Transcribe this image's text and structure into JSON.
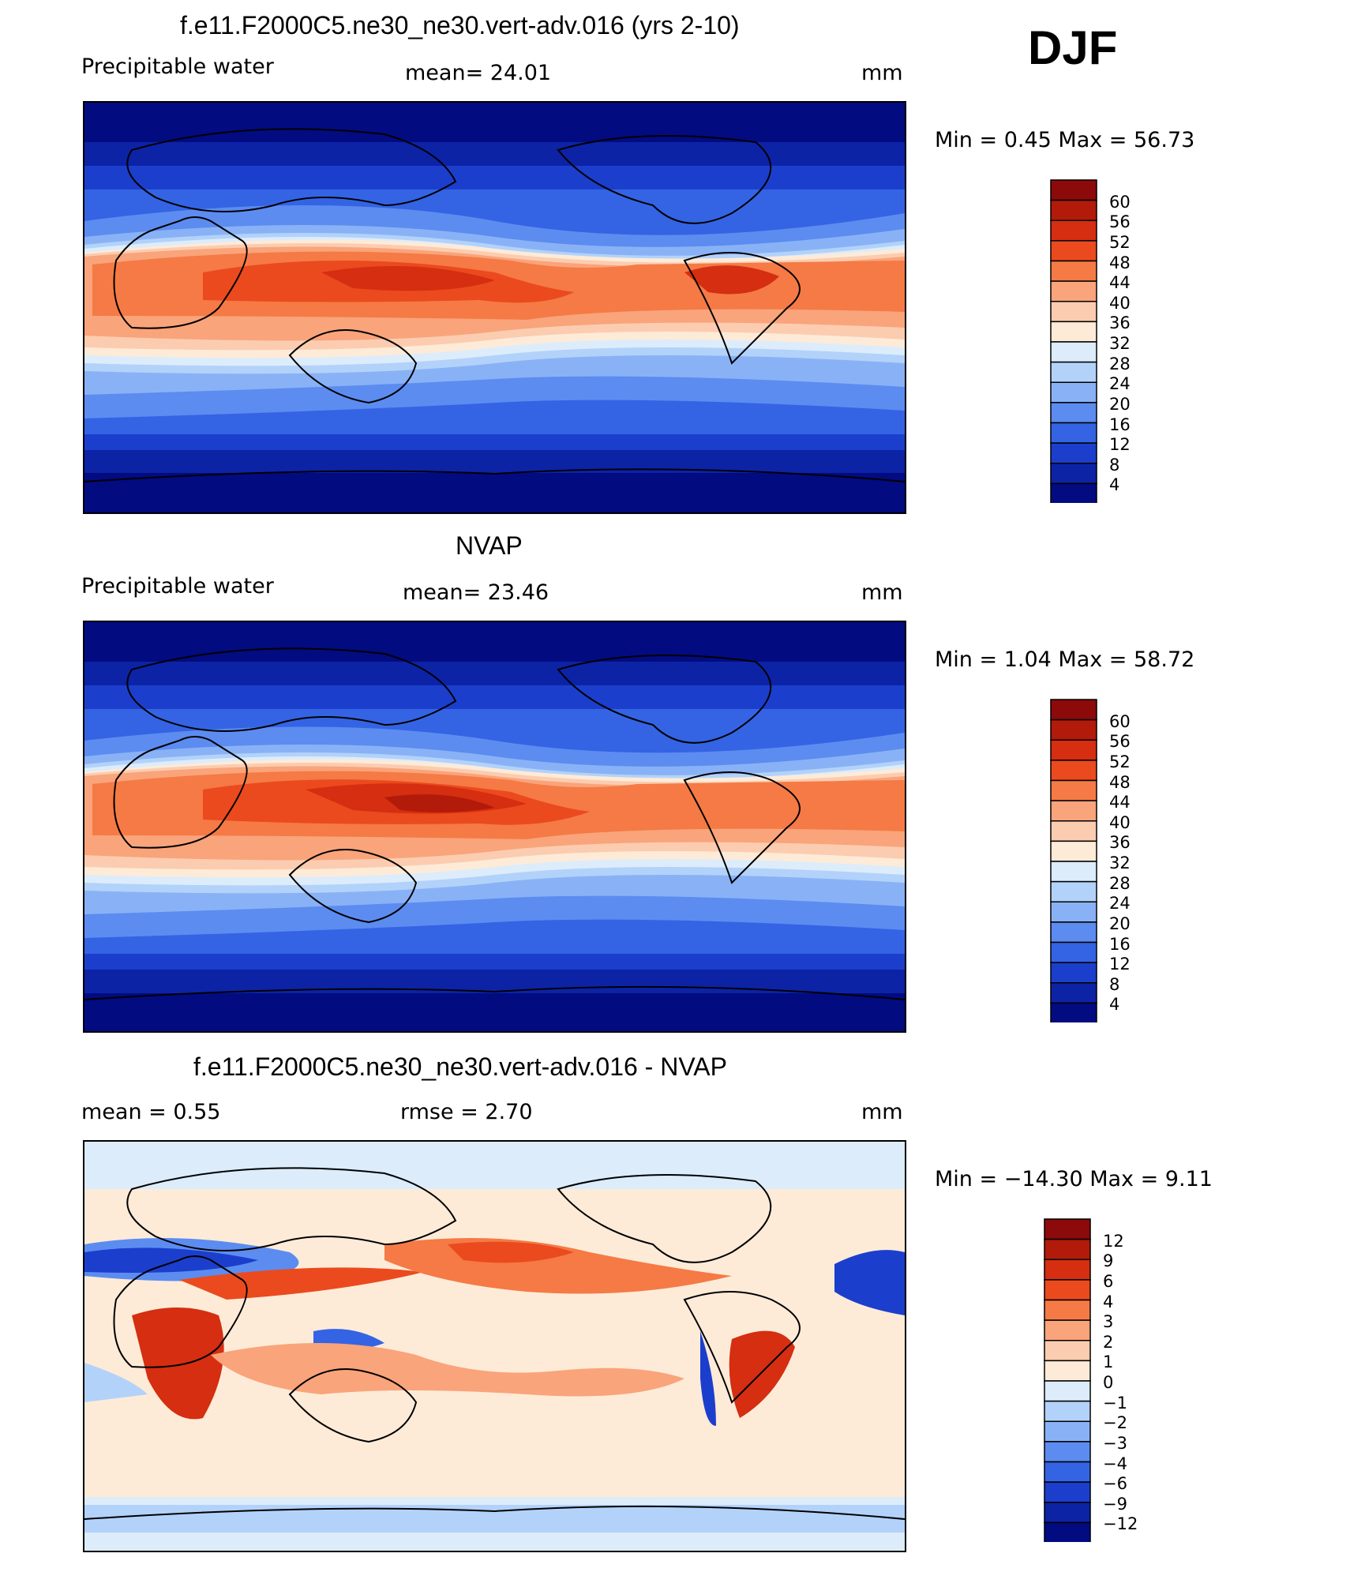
{
  "season": "DJF",
  "panels": [
    {
      "title": "f.e11.F2000C5.ne30_ne30.vert-adv.016 (yrs 2-10)",
      "left_label": "Precipitable  water",
      "center_label": "mean=   24.01",
      "units": "mm",
      "minmax": "Min  =     0.45  Max  =    56.73",
      "colorbar": {
        "labels": [
          "60",
          "56",
          "52",
          "48",
          "44",
          "40",
          "36",
          "32",
          "28",
          "24",
          "20",
          "16",
          "12",
          "8",
          "4"
        ],
        "colors": [
          "#8c0a0a",
          "#b21a0a",
          "#d52e10",
          "#eb4a1e",
          "#f57a45",
          "#f9a47b",
          "#fcccb0",
          "#fdebd8",
          "#dcecfb",
          "#b3d2fa",
          "#89b2f6",
          "#5c8cf0",
          "#3464e4",
          "#1b3fcc",
          "#0c23a6",
          "#020b80"
        ]
      }
    },
    {
      "title": "NVAP",
      "left_label": "Precipitable  water",
      "center_label": "mean=   23.46",
      "units": "mm",
      "minmax": "Min  =     1.04  Max  =    58.72",
      "colorbar": {
        "labels": [
          "60",
          "56",
          "52",
          "48",
          "44",
          "40",
          "36",
          "32",
          "28",
          "24",
          "20",
          "16",
          "12",
          "8",
          "4"
        ],
        "colors": [
          "#8c0a0a",
          "#b21a0a",
          "#d52e10",
          "#eb4a1e",
          "#f57a45",
          "#f9a47b",
          "#fcccb0",
          "#fdebd8",
          "#dcecfb",
          "#b3d2fa",
          "#89b2f6",
          "#5c8cf0",
          "#3464e4",
          "#1b3fcc",
          "#0c23a6",
          "#020b80"
        ]
      }
    },
    {
      "title": "f.e11.F2000C5.ne30_ne30.vert-adv.016 - NVAP",
      "left_label": "mean  =      0.55",
      "center_label": "rmse  =      2.70",
      "units": "mm",
      "minmax": "Min  = −14.30  Max  =      9.11",
      "colorbar": {
        "labels": [
          "12",
          "9",
          "6",
          "4",
          "3",
          "2",
          "1",
          "0",
          "−1",
          "−2",
          "−3",
          "−4",
          "−6",
          "−9",
          "−12"
        ],
        "colors": [
          "#8c0a0a",
          "#b21a0a",
          "#d52e10",
          "#eb4a1e",
          "#f57a45",
          "#f9a47b",
          "#fcccb0",
          "#fdebd8",
          "#dcecfb",
          "#b3d2fa",
          "#89b2f6",
          "#5c8cf0",
          "#3464e4",
          "#1b3fcc",
          "#0c23a6",
          "#020b80"
        ]
      }
    }
  ]
}
